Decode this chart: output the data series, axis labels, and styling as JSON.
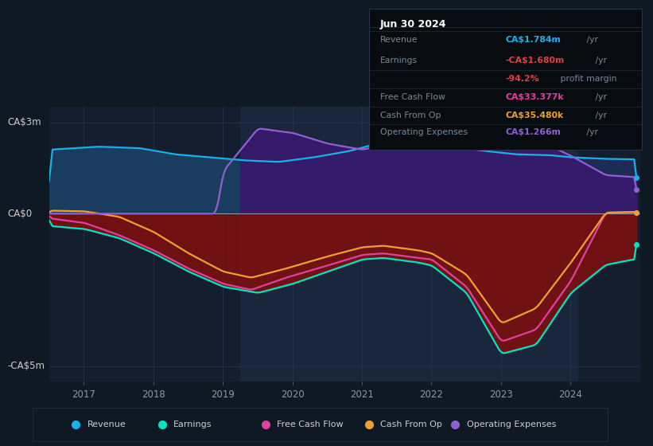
{
  "bg_color": "#0f1923",
  "plot_bg_color": "#141e2e",
  "ylim": [
    -5500000,
    3500000
  ],
  "xlim_start": 2016.5,
  "xlim_end": 2025.0,
  "x_ticks": [
    2017,
    2018,
    2019,
    2020,
    2021,
    2022,
    2023,
    2024
  ],
  "colors": {
    "revenue": "#1ab0e8",
    "earnings": "#00e5c0",
    "free_cash_flow": "#e040a0",
    "cash_from_op": "#f0a030",
    "operating_expenses": "#9060d0"
  },
  "revenue_fill_left": "#1a3a5a",
  "revenue_fill_right": "#1e2e5a",
  "opex_fill": "#3a1a6a",
  "earnings_fill": "#7a1010",
  "shaded_start": 2019.25,
  "shaded_end": 2024.1,
  "info_box": {
    "date": "Jun 30 2024",
    "rows": [
      {
        "label": "Revenue",
        "value": "CA$1.784m",
        "suffix": " /yr",
        "value_color": "#1ab0e8",
        "margin": null
      },
      {
        "label": "Earnings",
        "value": "-CA$1.680m",
        "suffix": " /yr",
        "value_color": "#e04040",
        "margin": "-94.2%"
      },
      {
        "label": "Free Cash Flow",
        "value": "CA$33.377k",
        "suffix": " /yr",
        "value_color": "#e040a0",
        "margin": null
      },
      {
        "label": "Cash From Op",
        "value": "CA$35.480k",
        "suffix": " /yr",
        "value_color": "#f0a030",
        "margin": null
      },
      {
        "label": "Operating Expenses",
        "value": "CA$1.266m",
        "suffix": " /yr",
        "value_color": "#9060d0",
        "margin": null
      }
    ]
  },
  "legend_entries": [
    "Revenue",
    "Earnings",
    "Free Cash Flow",
    "Cash From Op",
    "Operating Expenses"
  ],
  "legend_colors": [
    "#1ab0e8",
    "#00e5c0",
    "#e040a0",
    "#f0a030",
    "#9060d0"
  ],
  "revenue_pts": {
    "x": [
      2016.5,
      2017.2,
      2017.8,
      2018.3,
      2018.8,
      2019.3,
      2019.8,
      2020.3,
      2020.8,
      2021.3,
      2021.8,
      2022.3,
      2022.8,
      2023.2,
      2023.7,
      2024.0,
      2024.5,
      2024.9
    ],
    "y": [
      2100000,
      2200000,
      2150000,
      1950000,
      1850000,
      1750000,
      1700000,
      1850000,
      2050000,
      2350000,
      2300000,
      2200000,
      2050000,
      1950000,
      1920000,
      1850000,
      1800000,
      1784000
    ]
  },
  "earnings_pts": {
    "x": [
      2016.5,
      2017.0,
      2017.5,
      2018.0,
      2018.5,
      2019.0,
      2019.5,
      2020.0,
      2020.5,
      2021.0,
      2021.3,
      2021.8,
      2022.0,
      2022.5,
      2023.0,
      2023.5,
      2024.0,
      2024.5,
      2024.9
    ],
    "y": [
      -400000,
      -500000,
      -800000,
      -1300000,
      -1900000,
      -2400000,
      -2600000,
      -2300000,
      -1900000,
      -1500000,
      -1450000,
      -1600000,
      -1700000,
      -2600000,
      -4600000,
      -4300000,
      -2600000,
      -1680000,
      -1500000
    ]
  },
  "fcf_pts": {
    "x": [
      2016.5,
      2017.0,
      2017.5,
      2018.0,
      2018.5,
      2019.0,
      2019.4,
      2019.9,
      2020.5,
      2021.0,
      2021.3,
      2021.8,
      2022.0,
      2022.5,
      2023.0,
      2023.5,
      2024.0,
      2024.5,
      2024.9
    ],
    "y": [
      -150000,
      -300000,
      -700000,
      -1200000,
      -1800000,
      -2300000,
      -2500000,
      -2100000,
      -1700000,
      -1350000,
      -1300000,
      -1450000,
      -1500000,
      -2400000,
      -4200000,
      -3800000,
      -2200000,
      33000,
      50000
    ]
  },
  "cfo_pts": {
    "x": [
      2016.5,
      2017.0,
      2017.5,
      2018.0,
      2018.5,
      2019.0,
      2019.4,
      2019.9,
      2020.5,
      2021.0,
      2021.3,
      2021.8,
      2022.0,
      2022.5,
      2023.0,
      2023.5,
      2024.0,
      2024.5,
      2024.9
    ],
    "y": [
      100000,
      80000,
      -100000,
      -600000,
      -1300000,
      -1900000,
      -2100000,
      -1800000,
      -1400000,
      -1100000,
      -1050000,
      -1200000,
      -1300000,
      -2000000,
      -3600000,
      -3100000,
      -1600000,
      35000,
      60000
    ]
  },
  "opex_pts": {
    "x": [
      2016.5,
      2018.9,
      2019.0,
      2019.5,
      2020.0,
      2020.5,
      2021.0,
      2021.5,
      2022.0,
      2022.5,
      2023.0,
      2023.5,
      2024.0,
      2024.5,
      2024.9
    ],
    "y": [
      0,
      0,
      1400000,
      2800000,
      2650000,
      2300000,
      2100000,
      2350000,
      2600000,
      2850000,
      2700000,
      2450000,
      1900000,
      1266000,
      1200000
    ]
  }
}
